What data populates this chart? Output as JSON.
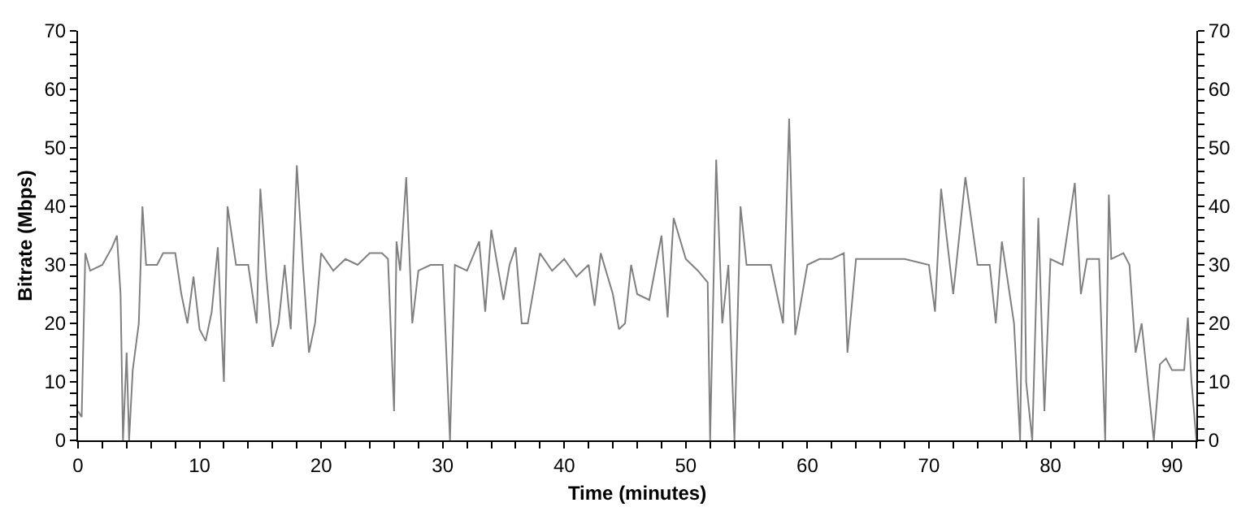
{
  "chart_data": {
    "type": "line",
    "xlabel": "Time (minutes)",
    "ylabel": "Bitrate (Mbps)",
    "x": [
      0,
      0.3,
      0.6,
      1,
      2,
      2.8,
      3.2,
      3.5,
      3.7,
      4,
      4.2,
      4.5,
      5,
      5.3,
      5.6,
      6.5,
      7,
      8,
      8.5,
      9,
      9.5,
      10,
      10.5,
      11,
      11.5,
      12,
      12.3,
      13,
      14,
      14.7,
      15,
      15.5,
      16,
      16.5,
      17,
      17.5,
      18,
      18.5,
      19,
      19.5,
      20,
      21,
      22,
      23,
      24,
      25,
      25.5,
      26,
      26.2,
      26.5,
      27,
      27.5,
      28,
      29,
      30,
      30.6,
      31,
      32,
      33,
      33.5,
      34,
      35,
      35.5,
      36,
      36.5,
      37,
      38,
      39,
      40,
      41,
      42,
      42.5,
      43,
      44,
      44.5,
      45,
      45.5,
      46,
      47,
      48,
      48.5,
      49,
      50,
      51,
      51.8,
      52,
      52.5,
      53,
      53.5,
      54,
      54.5,
      55,
      57,
      57.5,
      58,
      58.5,
      59,
      60,
      61,
      62,
      63,
      63.3,
      64,
      66,
      68,
      70,
      70.5,
      71,
      72,
      73,
      74,
      75,
      75.5,
      76,
      77,
      77.5,
      77.8,
      78,
      78.5,
      79,
      79.5,
      80,
      81,
      82,
      82.5,
      83,
      84,
      84.5,
      84.8,
      85,
      86,
      86.5,
      87,
      87.5,
      88,
      88.5,
      89,
      89.5,
      90,
      91,
      91.3,
      91.6,
      92
    ],
    "series": [
      {
        "color": "#808080",
        "values": [
          5,
          4,
          32,
          29,
          30,
          33,
          35,
          25,
          0,
          15,
          0,
          12,
          20,
          40,
          30,
          30,
          32,
          32,
          25,
          20,
          28,
          19,
          17,
          22,
          33,
          10,
          40,
          30,
          30,
          20,
          43,
          28,
          16,
          20,
          30,
          19,
          47,
          30,
          15,
          20,
          32,
          29,
          31,
          30,
          32,
          32,
          31,
          5,
          34,
          29,
          45,
          20,
          29,
          30,
          30,
          0,
          30,
          29,
          34,
          22,
          36,
          24,
          30,
          33,
          20,
          20,
          32,
          29,
          31,
          28,
          30,
          23,
          32,
          25,
          19,
          20,
          30,
          25,
          24,
          35,
          21,
          38,
          31,
          29,
          27,
          0,
          48,
          20,
          30,
          0,
          40,
          30,
          30,
          25,
          20,
          55,
          18,
          30,
          31,
          31,
          32,
          15,
          31,
          31,
          31,
          30,
          22,
          43,
          25,
          45,
          30,
          30,
          20,
          34,
          20,
          0,
          45,
          10,
          0,
          38,
          5,
          31,
          30,
          44,
          25,
          31,
          31,
          0,
          42,
          31,
          32,
          30,
          15,
          20,
          10,
          0,
          13,
          14,
          12,
          12,
          21,
          10,
          0
        ]
      }
    ],
    "xlim": [
      0,
      92
    ],
    "ylim": [
      0,
      70
    ],
    "y2lim": [
      0,
      70
    ],
    "xticks": [
      0,
      {
        "value": 2,
        "label": null
      },
      {
        "value": 4,
        "label": null
      },
      {
        "value": 6,
        "label": null
      },
      {
        "value": 8,
        "label": null
      },
      10,
      {
        "value": 12,
        "label": null
      },
      {
        "value": 14,
        "label": null
      },
      {
        "value": 16,
        "label": null
      },
      {
        "value": 18,
        "label": null
      },
      20,
      {
        "value": 22,
        "label": null
      },
      {
        "value": 24,
        "label": null
      },
      {
        "value": 26,
        "label": null
      },
      {
        "value": 28,
        "label": null
      },
      30,
      {
        "value": 32,
        "label": null
      },
      {
        "value": 34,
        "label": null
      },
      {
        "value": 36,
        "label": null
      },
      {
        "value": 38,
        "label": null
      },
      40,
      {
        "value": 42,
        "label": null
      },
      {
        "value": 44,
        "label": null
      },
      {
        "value": 46,
        "label": null
      },
      {
        "value": 48,
        "label": null
      },
      50,
      {
        "value": 52,
        "label": null
      },
      {
        "value": 54,
        "label": null
      },
      {
        "value": 56,
        "label": null
      },
      {
        "value": 58,
        "label": null
      },
      60,
      {
        "value": 62,
        "label": null
      },
      {
        "value": 64,
        "label": null
      },
      {
        "value": 66,
        "label": null
      },
      {
        "value": 68,
        "label": null
      },
      70,
      {
        "value": 72,
        "label": null
      },
      {
        "value": 74,
        "label": null
      },
      {
        "value": 76,
        "label": null
      },
      {
        "value": 78,
        "label": null
      },
      80,
      {
        "value": 82,
        "label": null
      },
      {
        "value": 84,
        "label": null
      },
      {
        "value": 86,
        "label": null
      },
      {
        "value": 88,
        "label": null
      },
      90,
      {
        "value": 92,
        "label": null
      }
    ],
    "yticks": [
      0,
      {
        "value": 2,
        "label": null
      },
      {
        "value": 4,
        "label": null
      },
      {
        "value": 6,
        "label": null
      },
      {
        "value": 8,
        "label": null
      },
      10,
      {
        "value": 12,
        "label": null
      },
      {
        "value": 14,
        "label": null
      },
      {
        "value": 16,
        "label": null
      },
      {
        "value": 18,
        "label": null
      },
      20,
      {
        "value": 22,
        "label": null
      },
      {
        "value": 24,
        "label": null
      },
      {
        "value": 26,
        "label": null
      },
      {
        "value": 28,
        "label": null
      },
      30,
      {
        "value": 32,
        "label": null
      },
      {
        "value": 34,
        "label": null
      },
      {
        "value": 36,
        "label": null
      },
      {
        "value": 38,
        "label": null
      },
      40,
      {
        "value": 42,
        "label": null
      },
      {
        "value": 44,
        "label": null
      },
      {
        "value": 46,
        "label": null
      },
      {
        "value": 48,
        "label": null
      },
      50,
      {
        "value": 52,
        "label": null
      },
      {
        "value": 54,
        "label": null
      },
      {
        "value": 56,
        "label": null
      },
      {
        "value": 58,
        "label": null
      },
      60,
      {
        "value": 62,
        "label": null
      },
      {
        "value": 64,
        "label": null
      },
      {
        "value": 66,
        "label": null
      },
      {
        "value": 68,
        "label": null
      },
      70
    ],
    "y2ticks": [
      0,
      {
        "value": 2,
        "label": null
      },
      {
        "value": 4,
        "label": null
      },
      {
        "value": 6,
        "label": null
      },
      {
        "value": 8,
        "label": null
      },
      10,
      {
        "value": 12,
        "label": null
      },
      {
        "value": 14,
        "label": null
      },
      {
        "value": 16,
        "label": null
      },
      {
        "value": 18,
        "label": null
      },
      20,
      {
        "value": 22,
        "label": null
      },
      {
        "value": 24,
        "label": null
      },
      {
        "value": 26,
        "label": null
      },
      {
        "value": 28,
        "label": null
      },
      30,
      {
        "value": 32,
        "label": null
      },
      {
        "value": 34,
        "label": null
      },
      {
        "value": 36,
        "label": null
      },
      {
        "value": 38,
        "label": null
      },
      40,
      {
        "value": 42,
        "label": null
      },
      {
        "value": 44,
        "label": null
      },
      {
        "value": 46,
        "label": null
      },
      {
        "value": 48,
        "label": null
      },
      50,
      {
        "value": 52,
        "label": null
      },
      {
        "value": 54,
        "label": null
      },
      {
        "value": 56,
        "label": null
      },
      {
        "value": 58,
        "label": null
      },
      60,
      {
        "value": 62,
        "label": null
      },
      {
        "value": 64,
        "label": null
      },
      {
        "value": 66,
        "label": null
      },
      {
        "value": 68,
        "label": null
      },
      70
    ],
    "marker": "none",
    "line_style": "solid"
  }
}
